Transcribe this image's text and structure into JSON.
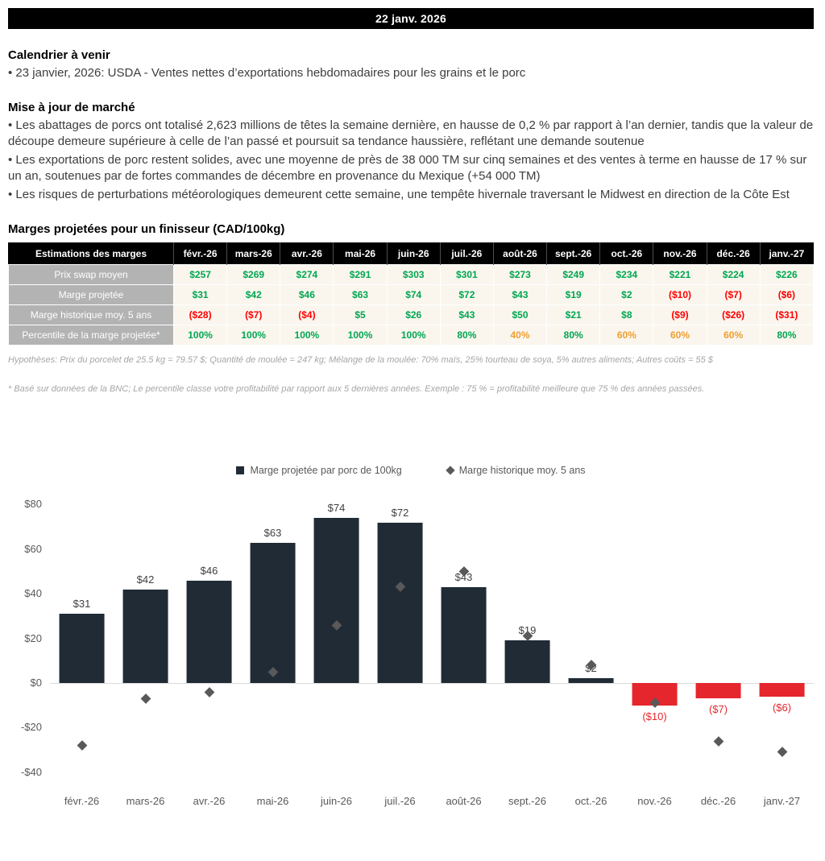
{
  "header": {
    "date": "22 janv. 2026"
  },
  "sections": {
    "calendar": {
      "title": "Calendrier à venir",
      "items": [
        "23 janvier, 2026: USDA - Ventes nettes d’exportations hebdomadaires pour les grains et le porc"
      ]
    },
    "market_update": {
      "title": "Mise à jour de marché",
      "items": [
        "Les abattages de porcs ont totalisé 2,623 millions de têtes la semaine dernière, en hausse de 0,2 % par rapport à l’an dernier, tandis que la valeur de découpe demeure supérieure à celle de l’an passé et poursuit sa tendance haussière, reflétant une demande soutenue",
        "Les exportations de porc restent solides, avec une moyenne de près de 38 000 TM sur cinq semaines et des ventes à terme en hausse de 17 % sur un an, soutenues par de fortes commandes de décembre en provenance du Mexique (+54 000 TM)",
        "Les risques de perturbations météorologiques demeurent cette semaine, une tempête hivernale traversant le Midwest en direction de la Côte Est"
      ]
    },
    "margins": {
      "title": "Marges projetées pour un finisseur (CAD/100kg)"
    }
  },
  "table": {
    "header": [
      "Estimations des marges",
      "févr.-26",
      "mars-26",
      "avr.-26",
      "mai-26",
      "juin-26",
      "juil.-26",
      "août-26",
      "sept.-26",
      "oct.-26",
      "nov.-26",
      "déc.-26",
      "janv.-27"
    ],
    "rows": [
      {
        "label": "Prix swap moyen",
        "values": [
          "$257",
          "$269",
          "$274",
          "$291",
          "$303",
          "$301",
          "$273",
          "$249",
          "$234",
          "$221",
          "$224",
          "$226"
        ],
        "colors": [
          "g",
          "g",
          "g",
          "g",
          "g",
          "g",
          "g",
          "g",
          "g",
          "g",
          "g",
          "g"
        ]
      },
      {
        "label": "Marge projetée",
        "values": [
          "$31",
          "$42",
          "$46",
          "$63",
          "$74",
          "$72",
          "$43",
          "$19",
          "$2",
          "($10)",
          "($7)",
          "($6)"
        ],
        "colors": [
          "g",
          "g",
          "g",
          "g",
          "g",
          "g",
          "g",
          "g",
          "g",
          "r",
          "r",
          "r"
        ]
      },
      {
        "label": "Marge historique moy. 5 ans",
        "values": [
          "($28)",
          "($7)",
          "($4)",
          "$5",
          "$26",
          "$43",
          "$50",
          "$21",
          "$8",
          "($9)",
          "($26)",
          "($31)"
        ],
        "colors": [
          "r",
          "r",
          "r",
          "g",
          "g",
          "g",
          "g",
          "g",
          "g",
          "r",
          "r",
          "r"
        ]
      },
      {
        "label": "Percentile de la marge projetée*",
        "values": [
          "100%",
          "100%",
          "100%",
          "100%",
          "100%",
          "80%",
          "40%",
          "80%",
          "60%",
          "60%",
          "60%",
          "80%"
        ],
        "colors": [
          "g",
          "g",
          "g",
          "g",
          "g",
          "g",
          "o",
          "g",
          "o",
          "o",
          "o",
          "g"
        ]
      }
    ],
    "colors": {
      "g": "#00a651",
      "r": "#ff0000",
      "o": "#f09e2e"
    }
  },
  "footnotes": [
    "Hypothèses: Prix du porcelet de 25.5 kg = 79.57 $; Quantité de moulée = 247 kg; Mélange de la moulée: 70% maïs, 25% tourteau de soya, 5% autres aliments; Autres coûts = 55 $",
    "* Basé sur données de la BNC; Le percentile classe votre profitabilité par rapport aux 5 dernières années. Exemple : 75 % = profitabilité meilleure que 75 % des années passées."
  ],
  "chart_data": {
    "type": "bar",
    "title": "",
    "categories": [
      "févr.-26",
      "mars-26",
      "avr.-26",
      "mai-26",
      "juin-26",
      "juil.-26",
      "août-26",
      "sept.-26",
      "oct.-26",
      "nov.-26",
      "déc.-26",
      "janv.-27"
    ],
    "series": [
      {
        "name": "Marge projetée par porc de 100kg",
        "type": "bar",
        "values": [
          31,
          42,
          46,
          63,
          74,
          72,
          43,
          19,
          2,
          -10,
          -7,
          -6
        ]
      },
      {
        "name": "Marge historique moy. 5 ans",
        "type": "scatter-diamond",
        "values": [
          -28,
          -7,
          -4,
          5,
          26,
          43,
          50,
          21,
          8,
          -9,
          -26,
          -31
        ]
      }
    ],
    "yticks": [
      80,
      60,
      40,
      20,
      0,
      -20,
      -40
    ],
    "ylim": [
      -45,
      85
    ],
    "grid": false,
    "legend_position": "top",
    "colors": {
      "bar_positive": "#212b36",
      "bar_negative": "#e5262d",
      "marker": "#595959",
      "negative_label": "#e5262d"
    }
  }
}
